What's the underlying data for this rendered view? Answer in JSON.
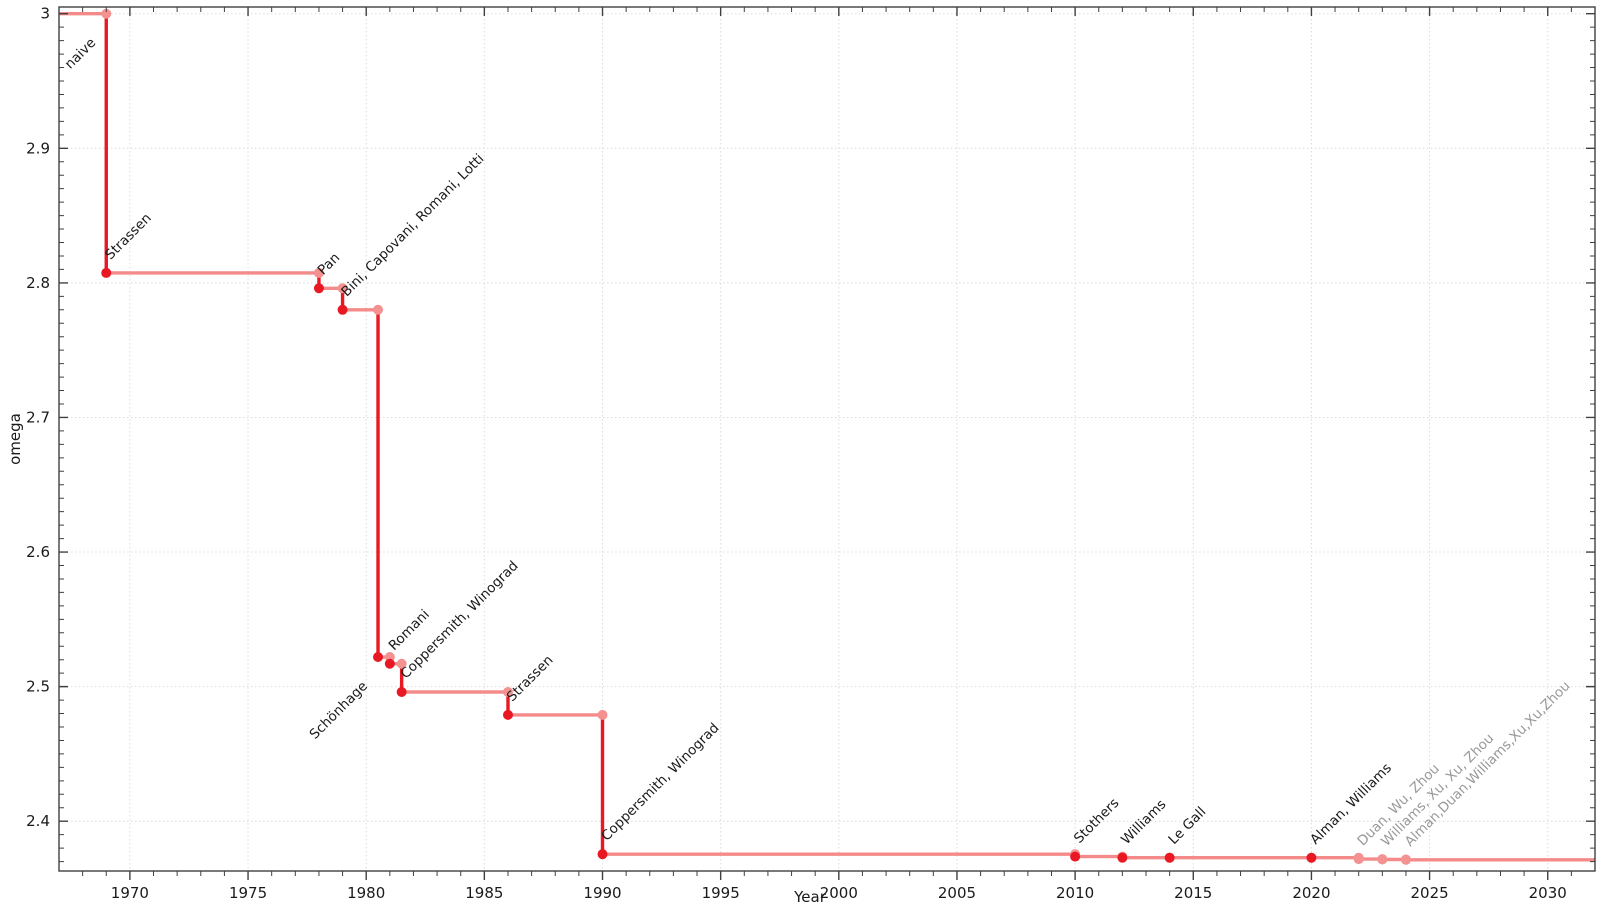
{
  "chart_data": {
    "type": "line",
    "subtype": "step",
    "title": "",
    "xlabel": "Year",
    "ylabel": "omega",
    "xlim": [
      1967,
      2032
    ],
    "ylim": [
      2.363,
      3.005
    ],
    "x_major_ticks": [
      1970,
      1975,
      1980,
      1985,
      1990,
      1995,
      2000,
      2005,
      2010,
      2015,
      2020,
      2025,
      2030
    ],
    "x_minor_step": 1,
    "y_major_ticks": [
      2.4,
      2.5,
      2.6,
      2.7,
      2.8,
      2.9,
      3
    ],
    "y_minor_step": 0.01,
    "grid": "dotted-at-major-ticks",
    "legend": "none",
    "initial": {
      "label": "naive",
      "omega": 3,
      "label_style": "black",
      "label_anchor": "end"
    },
    "events": [
      {
        "year": 1969,
        "omega": 2.8074,
        "label": "Strassen",
        "label_style": "black",
        "label_anchor": "start"
      },
      {
        "year": 1978,
        "omega": 2.796,
        "label": "Pan",
        "label_style": "black",
        "label_anchor": "start"
      },
      {
        "year": 1979,
        "omega": 2.78,
        "label": "Bini, Capovani, Romani, Lotti",
        "label_style": "black",
        "label_anchor": "start"
      },
      {
        "year": 1980.5,
        "omega": 2.522,
        "label": "Schönhage",
        "label_style": "black",
        "label_anchor": "end"
      },
      {
        "year": 1981,
        "omega": 2.517,
        "label": "Romani",
        "label_style": "black",
        "label_anchor": "start"
      },
      {
        "year": 1981.5,
        "omega": 2.496,
        "label": "Coppersmith, Winograd",
        "label_style": "black",
        "label_anchor": "start"
      },
      {
        "year": 1986,
        "omega": 2.479,
        "label": "Strassen",
        "label_style": "black",
        "label_anchor": "start"
      },
      {
        "year": 1990,
        "omega": 2.3755,
        "label": "Coppersmith, Winograd",
        "label_style": "black",
        "label_anchor": "start"
      },
      {
        "year": 2010,
        "omega": 2.3737,
        "label": "Stothers",
        "label_style": "black",
        "label_anchor": "start"
      },
      {
        "year": 2012,
        "omega": 2.3729,
        "label": "Williams",
        "label_style": "black",
        "label_anchor": "start"
      },
      {
        "year": 2014,
        "omega": 2.3728639,
        "label": "Le Gall",
        "label_style": "black",
        "label_anchor": "start"
      },
      {
        "year": 2020,
        "omega": 2.3728596,
        "label": "Alman, Williams",
        "label_style": "black",
        "label_anchor": "start"
      },
      {
        "year": 2022,
        "omega": 2.371866,
        "label": "Duan, Wu, Zhou",
        "label_style": "gray",
        "label_anchor": "start"
      },
      {
        "year": 2023,
        "omega": 2.371552,
        "label": "Williams, Xu, Xu, Zhou",
        "label_style": "gray",
        "label_anchor": "start"
      },
      {
        "year": 2024,
        "omega": 2.371339,
        "label": "Alman,Duan,Williams,Xu,Xu,Zhou",
        "label_style": "gray",
        "label_anchor": "start"
      }
    ],
    "colors": {
      "step_line_light": "#F48A8A",
      "drop_line_dark": "#E81923",
      "point_dark": "#E81923",
      "point_light": "#F49191",
      "label_black": "#1a1a1a",
      "label_gray": "#999999",
      "grid": "#DCDCDC",
      "axis": "#404040",
      "tick_text": "#1a1a1a"
    }
  }
}
